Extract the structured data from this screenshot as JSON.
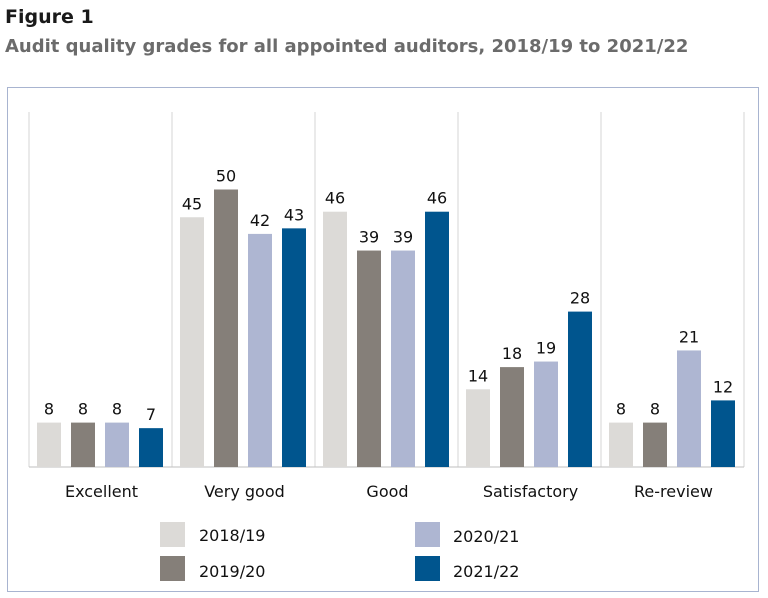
{
  "figure_label": "Figure 1",
  "title": "Audit quality grades for all appointed auditors, 2018/19 to 2021/22",
  "chart_data": {
    "type": "bar",
    "categories": [
      "Excellent",
      "Very good",
      "Good",
      "Satisfactory",
      "Re-review"
    ],
    "series": [
      {
        "name": "2018/19",
        "color": "#dcdad7",
        "values": [
          8,
          45,
          46,
          14,
          8
        ]
      },
      {
        "name": "2019/20",
        "color": "#857f79",
        "values": [
          8,
          50,
          39,
          18,
          8
        ]
      },
      {
        "name": "2020/21",
        "color": "#aeb6d2",
        "values": [
          8,
          42,
          39,
          19,
          21
        ]
      },
      {
        "name": "2021/22",
        "color": "#00558e",
        "values": [
          7,
          43,
          46,
          28,
          12
        ]
      }
    ],
    "ylim": [
      0,
      55
    ],
    "grid": false,
    "legend_position": "bottom"
  }
}
